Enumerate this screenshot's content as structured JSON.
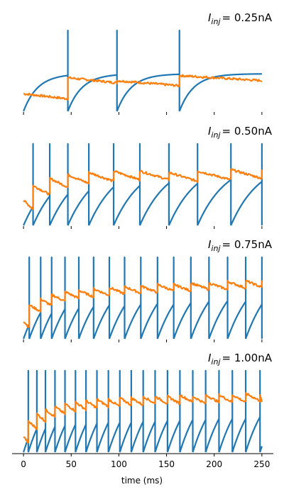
{
  "figure": {
    "xlabel": "time (ms)",
    "xticks": [
      0,
      50,
      100,
      150,
      200,
      250
    ],
    "xlim": [
      -12,
      262
    ]
  },
  "colors": {
    "membrane": "#1f77b4",
    "adaptation": "#ff7f0e",
    "axis": "#000000"
  },
  "chart_data": [
    {
      "type": "line",
      "title_prefix": "I",
      "title_sub": "inj",
      "title_value": "= 0.25nA",
      "spike_times": [
        46.5,
        98,
        163.5
      ],
      "series": [
        {
          "color": "#1f77b4",
          "kind": "membrane",
          "start": 0.0,
          "rest_target": 0.8,
          "tau": 15
        },
        {
          "color": "#ff7f0e",
          "kind": "adaptation",
          "levels": [
            0.3,
            0.52,
            0.48,
            0.55
          ],
          "decay": 0.07
        }
      ]
    },
    {
      "type": "line",
      "title_prefix": "I",
      "title_sub": "inj",
      "title_value": "= 0.50nA",
      "spike_times": [
        10,
        27.5,
        46.5,
        68.5,
        94.5,
        122,
        152.5,
        182.5,
        217.5,
        250
      ],
      "series": [
        {
          "color": "#1f77b4",
          "kind": "membrane",
          "start": 0.0,
          "rest_target": 1.4,
          "tau": 30
        },
        {
          "color": "#ff7f0e",
          "kind": "adaptation",
          "levels": [
            0.4,
            0.6,
            0.7,
            0.75,
            0.78,
            0.8,
            0.8,
            0.78,
            0.8,
            0.82,
            0.8
          ],
          "decay": 0.12
        }
      ]
    },
    {
      "type": "line",
      "title_prefix": "I",
      "title_sub": "inj",
      "title_value": "= 0.75nA",
      "spike_times": [
        6,
        18,
        29.5,
        43.5,
        58,
        73.5,
        90,
        106,
        123,
        140.5,
        157.5,
        175.5,
        194.5,
        214,
        233,
        250
      ],
      "series": [
        {
          "color": "#1f77b4",
          "kind": "membrane",
          "start": 0.0,
          "rest_target": 1.6,
          "tau": 28
        },
        {
          "color": "#ff7f0e",
          "kind": "adaptation",
          "levels": [
            0.3,
            0.52,
            0.6,
            0.66,
            0.7,
            0.72,
            0.74,
            0.76,
            0.77,
            0.78,
            0.8,
            0.8,
            0.82,
            0.82,
            0.84,
            0.85,
            0.84
          ],
          "decay": 0.09
        }
      ]
    },
    {
      "type": "line",
      "title_prefix": "I",
      "title_sub": "inj",
      "title_value": "= 1.00nA",
      "spike_times": [
        5,
        14,
        23,
        33,
        43.5,
        54.5,
        65.5,
        77,
        89,
        101,
        113,
        125.5,
        138,
        151,
        164,
        177.5,
        191,
        205,
        219,
        233,
        248
      ],
      "series": [
        {
          "color": "#1f77b4",
          "kind": "membrane",
          "start": 0.0,
          "rest_target": 1.7,
          "tau": 26
        },
        {
          "color": "#ff7f0e",
          "kind": "adaptation",
          "levels": [
            0.28,
            0.48,
            0.58,
            0.64,
            0.68,
            0.72,
            0.74,
            0.76,
            0.78,
            0.78,
            0.8,
            0.8,
            0.82,
            0.82,
            0.82,
            0.84,
            0.82,
            0.84,
            0.84,
            0.84,
            0.86,
            0.84
          ],
          "decay": 0.1
        }
      ]
    }
  ]
}
